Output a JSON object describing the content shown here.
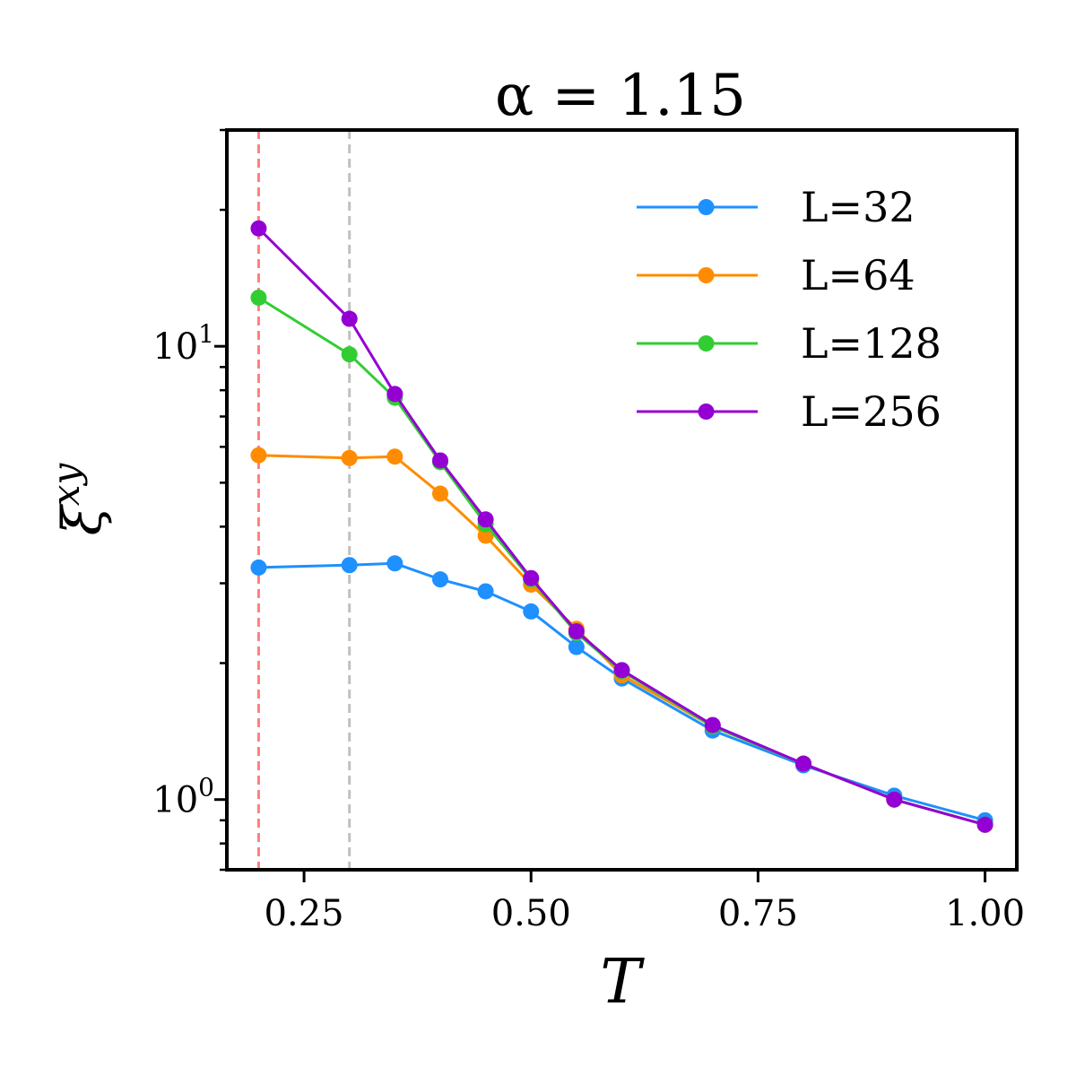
{
  "chart_data": {
    "type": "line",
    "title": "α = 1.15",
    "xlabel": "T",
    "ylabel_main": "ξ",
    "ylabel_sup": "xy",
    "xlim": [
      0.165,
      1.035
    ],
    "ylim": [
      0.7,
      30
    ],
    "yscale": "log",
    "xticks": [
      0.25,
      0.5,
      0.75,
      1.0
    ],
    "xtick_labels": [
      "0.25",
      "0.50",
      "0.75",
      "1.00"
    ],
    "yticks_major": [
      {
        "value": 1,
        "base": "10",
        "exp": "0"
      },
      {
        "value": 10,
        "base": "10",
        "exp": "1"
      }
    ],
    "yticks_minor": [
      0.7,
      0.8,
      0.9,
      2,
      3,
      4,
      5,
      6,
      7,
      8,
      9,
      20,
      30
    ],
    "vlines": [
      {
        "x": 0.2,
        "color": "#ff7f7f"
      },
      {
        "x": 0.3,
        "color": "#c0c0c0"
      }
    ],
    "legend_position": "top-right",
    "x": [
      0.2,
      0.3,
      0.35,
      0.4,
      0.45,
      0.5,
      0.55,
      0.6,
      0.7,
      0.8,
      0.9,
      1.0
    ],
    "series": [
      {
        "name": "L=32",
        "color": "#1e90ff",
        "values": [
          3.25,
          3.29,
          3.32,
          3.06,
          2.88,
          2.6,
          2.17,
          1.85,
          1.42,
          1.19,
          1.02,
          0.9
        ]
      },
      {
        "name": "L=64",
        "color": "#ff8c00",
        "values": [
          5.75,
          5.67,
          5.71,
          4.73,
          3.82,
          2.98,
          2.38,
          1.88,
          1.45,
          1.2,
          1.0,
          0.88
        ]
      },
      {
        "name": "L=128",
        "color": "#32cd32",
        "values": [
          12.8,
          9.6,
          7.7,
          5.55,
          4.05,
          3.06,
          2.33,
          1.92,
          1.45,
          1.2,
          1.0,
          0.88
        ]
      },
      {
        "name": "L=256",
        "color": "#9400d3",
        "values": [
          18.2,
          11.5,
          7.85,
          5.6,
          4.15,
          3.08,
          2.35,
          1.93,
          1.46,
          1.2,
          1.0,
          0.88
        ]
      }
    ]
  }
}
